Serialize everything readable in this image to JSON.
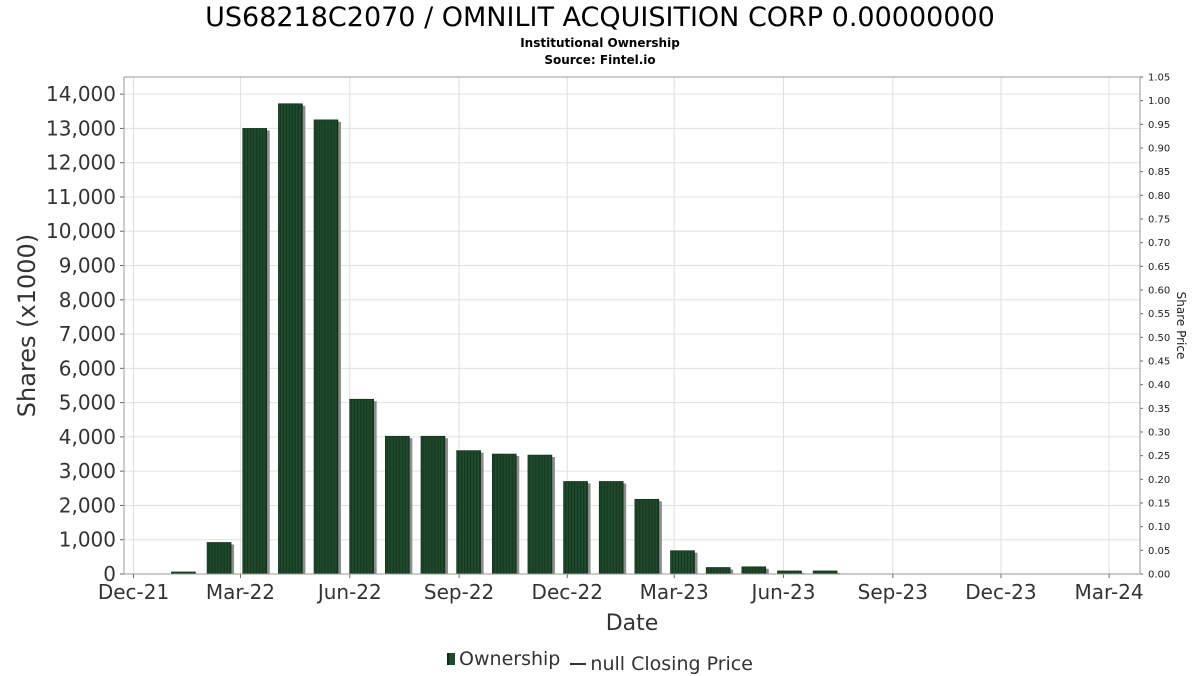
{
  "title": "US68218C2070 / OMNILIT ACQUISITION CORP 0.00000000",
  "subtitle1": "Institutional Ownership",
  "subtitle2": "Source: Fintel.io",
  "legend": {
    "ownership": "Ownership",
    "price": "null Closing Price"
  },
  "colors": {
    "bar": "#1f4a2c",
    "bar_stripe": "#15361f",
    "bar_shadow": "#8c8c8c",
    "grid": "#e0e0e0",
    "plot_border": "#999999"
  },
  "chart_data": {
    "type": "bar",
    "xlabel": "Date",
    "ylabel": "Shares (x1000)",
    "y2label": "Share Price",
    "ylim": [
      0,
      14500
    ],
    "y2lim": [
      0,
      1.05
    ],
    "yticks": [
      0,
      1000,
      2000,
      3000,
      4000,
      5000,
      6000,
      7000,
      8000,
      9000,
      10000,
      11000,
      12000,
      13000,
      14000
    ],
    "ytick_labels": [
      "0",
      "1,000",
      "2,000",
      "3,000",
      "4,000",
      "5,000",
      "6,000",
      "7,000",
      "8,000",
      "9,000",
      "10,000",
      "11,000",
      "12,000",
      "13,000",
      "14,000"
    ],
    "y2ticks": [
      0,
      0.05,
      0.1,
      0.15,
      0.2,
      0.25,
      0.3,
      0.35,
      0.4,
      0.45,
      0.5,
      0.55,
      0.6,
      0.65,
      0.7,
      0.75,
      0.8,
      0.85,
      0.9,
      0.95,
      1.0,
      1.05
    ],
    "y2tick_labels": [
      "0.00",
      "0.05",
      "0.10",
      "0.15",
      "0.20",
      "0.25",
      "0.30",
      "0.35",
      "0.40",
      "0.45",
      "0.50",
      "0.55",
      "0.60",
      "0.65",
      "0.70",
      "0.75",
      "0.80",
      "0.85",
      "0.90",
      "0.95",
      "1.00",
      "1.05"
    ],
    "xlim": [
      "2021-11-23",
      "2024-03-27"
    ],
    "xticks": [
      "2021-12-01",
      "2022-03-01",
      "2022-06-01",
      "2022-09-01",
      "2022-12-01",
      "2023-03-01",
      "2023-06-01",
      "2023-09-01",
      "2023-12-01",
      "2024-03-01"
    ],
    "xtick_labels": [
      "Dec-21",
      "Mar-22",
      "Jun-22",
      "Sep-22",
      "Dec-22",
      "Mar-23",
      "Jun-23",
      "Sep-23",
      "Dec-23",
      "Mar-24"
    ],
    "grid": true,
    "legend_position": "bottom",
    "series": [
      {
        "name": "Ownership",
        "points": [
          {
            "date": "2022-01-12",
            "value": 60
          },
          {
            "date": "2022-02-11",
            "value": 920
          },
          {
            "date": "2022-03-13",
            "value": 13000
          },
          {
            "date": "2022-04-12",
            "value": 13720
          },
          {
            "date": "2022-05-12",
            "value": 13250
          },
          {
            "date": "2022-06-11",
            "value": 5100
          },
          {
            "date": "2022-07-11",
            "value": 4020
          },
          {
            "date": "2022-08-10",
            "value": 4020
          },
          {
            "date": "2022-09-09",
            "value": 3600
          },
          {
            "date": "2022-10-09",
            "value": 3500
          },
          {
            "date": "2022-11-08",
            "value": 3470
          },
          {
            "date": "2022-12-08",
            "value": 2700
          },
          {
            "date": "2023-01-07",
            "value": 2700
          },
          {
            "date": "2023-02-06",
            "value": 2180
          },
          {
            "date": "2023-03-08",
            "value": 680
          },
          {
            "date": "2023-04-07",
            "value": 190
          },
          {
            "date": "2023-05-07",
            "value": 210
          },
          {
            "date": "2023-06-06",
            "value": 90
          },
          {
            "date": "2023-07-06",
            "value": 90
          }
        ]
      }
    ]
  }
}
